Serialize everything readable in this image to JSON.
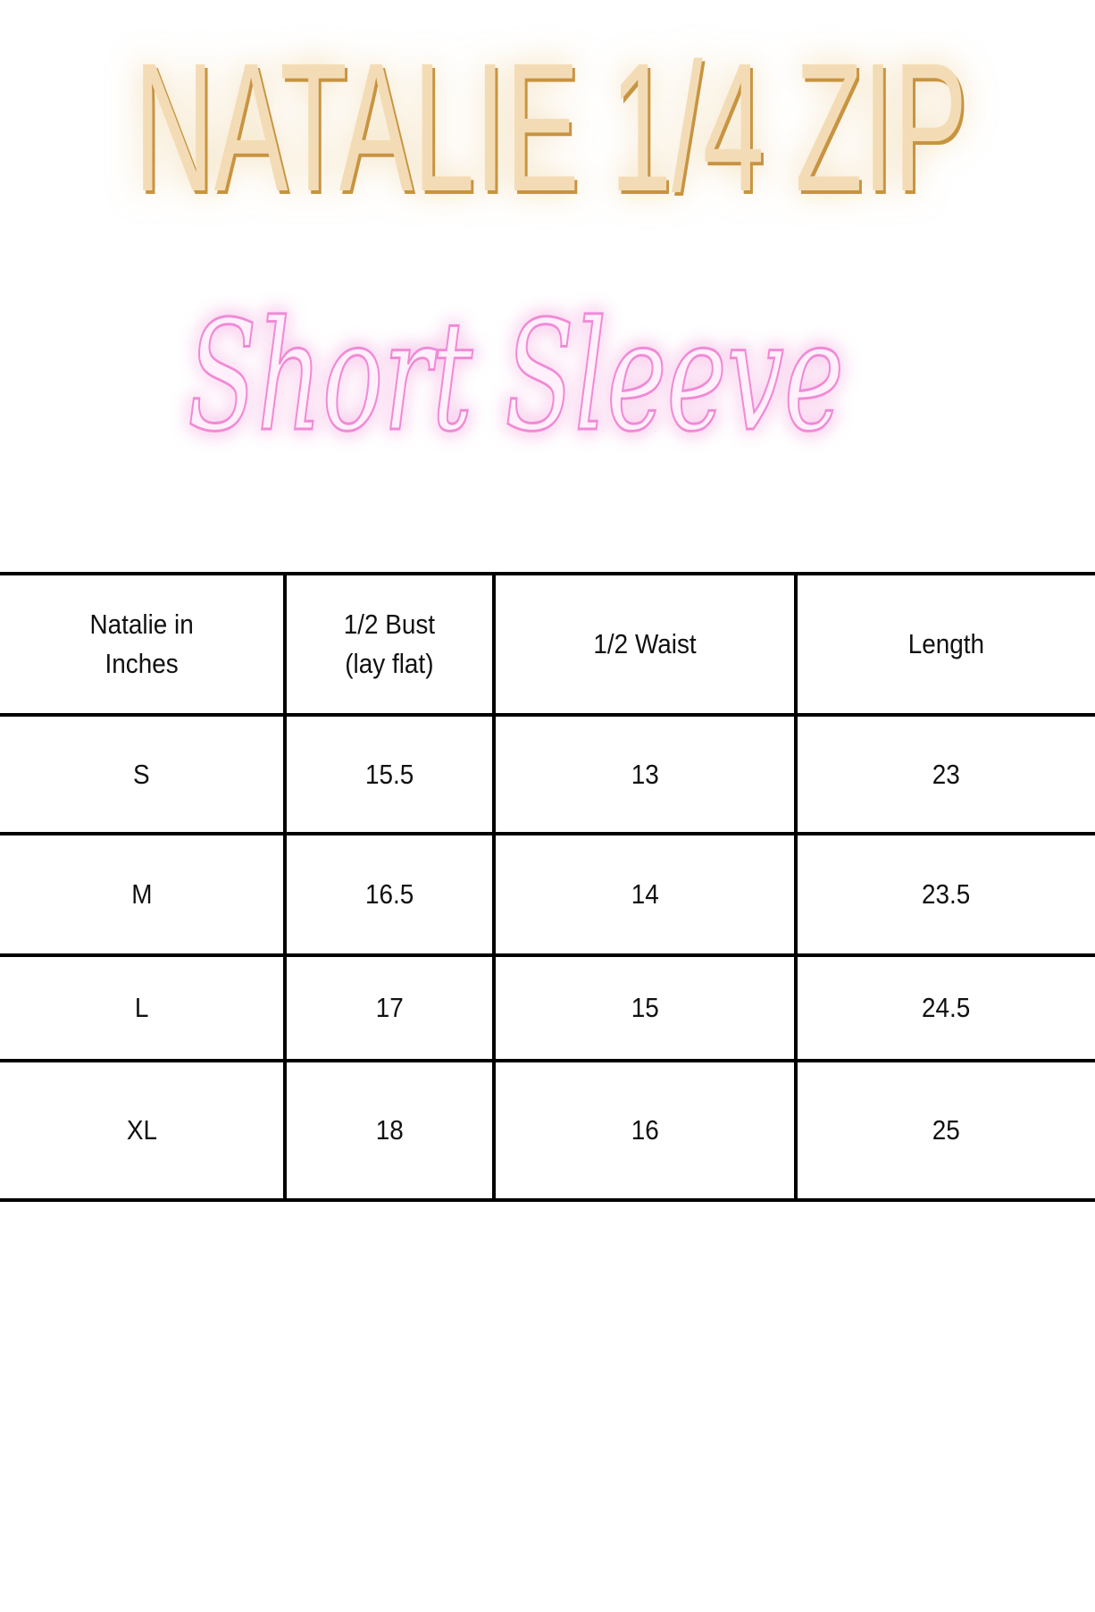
{
  "title": "NATALIE 1/4 ZIP",
  "subtitle": "Short Sleeve",
  "colors": {
    "title_fill": "#f3dcb5",
    "title_glow": "#d9a24a",
    "subtitle_stroke": "#f08ad6",
    "subtitle_glow": "#ff4fc8",
    "border": "#000000"
  },
  "table": {
    "headers": [
      "Natalie in\nInches",
      "1/2 Bust\n(lay flat)",
      "1/2 Waist",
      "Length"
    ],
    "rows": [
      [
        "S",
        "15.5",
        "13",
        "23"
      ],
      [
        "M",
        "16.5",
        "14",
        "23.5"
      ],
      [
        "L",
        "17",
        "15",
        "24.5"
      ],
      [
        "XL",
        "18",
        "16",
        "25"
      ]
    ]
  }
}
